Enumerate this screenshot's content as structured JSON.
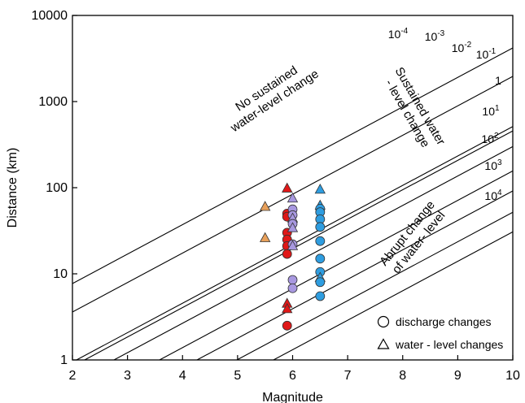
{
  "chart_data": {
    "type": "scatter",
    "xlabel": "Magnitude",
    "ylabel": "Distance (km)",
    "xlim": [
      2,
      10
    ],
    "ylim": [
      1,
      10000
    ],
    "y_scale": "log",
    "x_ticks": [
      "2",
      "3",
      "4",
      "5",
      "6",
      "7",
      "8",
      "9",
      "10"
    ],
    "y_ticks": [
      "1",
      "10",
      "100",
      "1000",
      "10000"
    ],
    "grid": false,
    "energy_density_lines": [
      {
        "label": "10-4",
        "base": "10",
        "exponent": "-4"
      },
      {
        "label": "10-3",
        "base": "10",
        "exponent": "-3"
      },
      {
        "label": "10-2",
        "base": "10",
        "exponent": "-2"
      },
      {
        "label": "10-1",
        "base": "10",
        "exponent": "-1"
      },
      {
        "label": "1",
        "base": "1",
        "exponent": ""
      },
      {
        "label": "101",
        "base": "10",
        "exponent": "1"
      },
      {
        "label": "102",
        "base": "10",
        "exponent": "2"
      },
      {
        "label": "103",
        "base": "10",
        "exponent": "3"
      },
      {
        "label": "104",
        "base": "10",
        "exponent": "4"
      }
    ],
    "region_labels": {
      "no_change": [
        "No sustained",
        "water-level change"
      ],
      "sustained": [
        "Sustained water",
        "- level change"
      ],
      "abrupt": [
        "Abrupt change",
        "of water- level"
      ]
    },
    "legend": {
      "position": "bottom-right",
      "entries": [
        {
          "shape": "circle",
          "label": "discharge changes"
        },
        {
          "shape": "triangle",
          "label": "water - level changes"
        }
      ]
    },
    "series": [
      {
        "color": "#e8a05a",
        "points": [
          {
            "x": 5.5,
            "y": 60,
            "marker": "triangle"
          },
          {
            "x": 5.5,
            "y": 26,
            "marker": "triangle"
          }
        ]
      },
      {
        "color": "#e01818",
        "points": [
          {
            "x": 5.9,
            "y": 98,
            "marker": "triangle"
          },
          {
            "x": 5.9,
            "y": 50,
            "marker": "circle"
          },
          {
            "x": 5.9,
            "y": 46,
            "marker": "circle"
          },
          {
            "x": 5.9,
            "y": 30,
            "marker": "circle"
          },
          {
            "x": 5.9,
            "y": 25,
            "marker": "circle"
          },
          {
            "x": 5.9,
            "y": 21,
            "marker": "circle"
          },
          {
            "x": 5.9,
            "y": 17,
            "marker": "circle"
          },
          {
            "x": 5.9,
            "y": 4.5,
            "marker": "triangle"
          },
          {
            "x": 5.9,
            "y": 3.9,
            "marker": "triangle"
          },
          {
            "x": 5.9,
            "y": 2.5,
            "marker": "circle"
          }
        ]
      },
      {
        "color": "#a898e0",
        "points": [
          {
            "x": 6.0,
            "y": 75,
            "marker": "triangle"
          },
          {
            "x": 6.0,
            "y": 56,
            "marker": "circle"
          },
          {
            "x": 6.0,
            "y": 48,
            "marker": "circle"
          },
          {
            "x": 6.0,
            "y": 44,
            "marker": "triangle"
          },
          {
            "x": 6.0,
            "y": 38,
            "marker": "circle"
          },
          {
            "x": 6.0,
            "y": 34,
            "marker": "triangle"
          },
          {
            "x": 6.0,
            "y": 22,
            "marker": "circle"
          },
          {
            "x": 6.0,
            "y": 21,
            "marker": "triangle"
          },
          {
            "x": 6.0,
            "y": 8.5,
            "marker": "circle"
          },
          {
            "x": 6.0,
            "y": 6.8,
            "marker": "circle"
          }
        ]
      },
      {
        "color": "#2e9de0",
        "points": [
          {
            "x": 6.5,
            "y": 95,
            "marker": "triangle"
          },
          {
            "x": 6.5,
            "y": 62,
            "marker": "triangle"
          },
          {
            "x": 6.5,
            "y": 57,
            "marker": "circle"
          },
          {
            "x": 6.5,
            "y": 52,
            "marker": "circle"
          },
          {
            "x": 6.5,
            "y": 43,
            "marker": "circle"
          },
          {
            "x": 6.5,
            "y": 35,
            "marker": "circle"
          },
          {
            "x": 6.5,
            "y": 24,
            "marker": "circle"
          },
          {
            "x": 6.5,
            "y": 15,
            "marker": "circle"
          },
          {
            "x": 6.5,
            "y": 10.5,
            "marker": "circle"
          },
          {
            "x": 6.5,
            "y": 9.0,
            "marker": "triangle"
          },
          {
            "x": 6.5,
            "y": 8.0,
            "marker": "circle"
          },
          {
            "x": 6.5,
            "y": 5.5,
            "marker": "circle"
          }
        ]
      }
    ]
  }
}
